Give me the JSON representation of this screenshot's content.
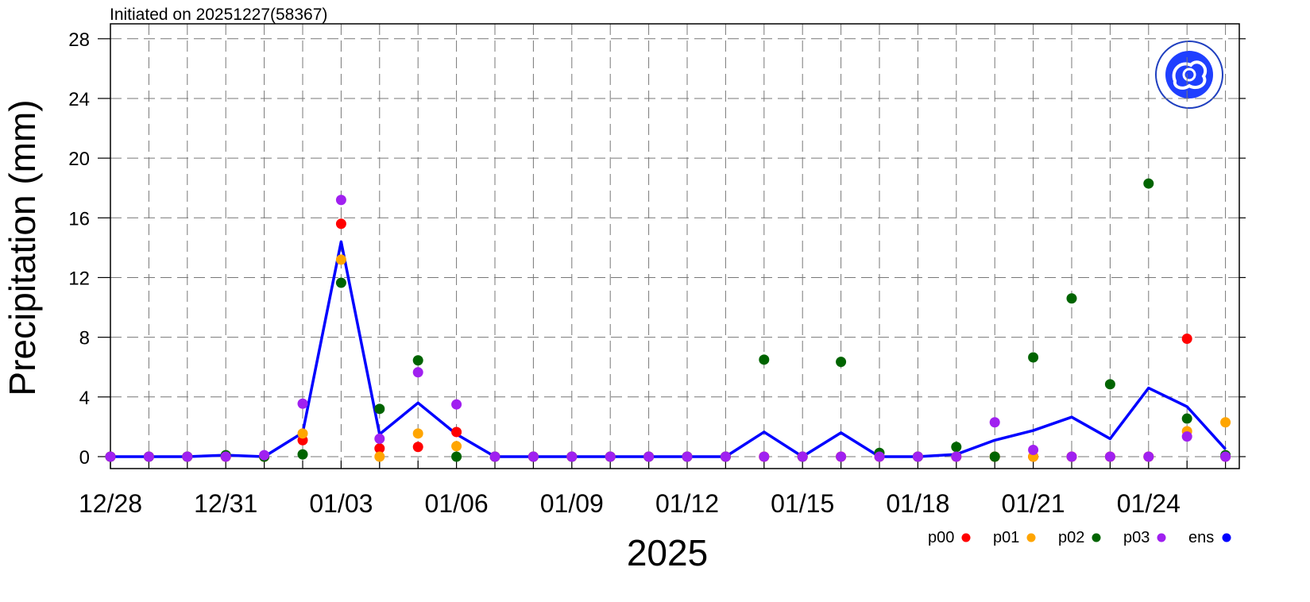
{
  "chart_data": {
    "type": "line",
    "title": "Initiated on 20251227(58367)",
    "xlabel": "2025",
    "ylabel": "Precipitation (mm)",
    "categories": [
      "12/28",
      null,
      null,
      "12/31",
      null,
      null,
      "01/03",
      null,
      null,
      "01/06",
      null,
      null,
      "01/09",
      null,
      null,
      "01/12",
      null,
      null,
      "01/15",
      null,
      null,
      "01/18",
      null,
      null,
      "01/21",
      null,
      null,
      "01/24",
      null,
      null
    ],
    "ylim": [
      -0.8,
      29
    ],
    "yticks": [
      0,
      4,
      8,
      12,
      16,
      20,
      24,
      28
    ],
    "grid": true,
    "legend": "bottom-right",
    "series": [
      {
        "name": "p00",
        "color": "#ff0000",
        "marker": "dot",
        "values": [
          0,
          0,
          0,
          0,
          0,
          1.1,
          15.6,
          0.55,
          0.65,
          1.65,
          0,
          0,
          0,
          0,
          0,
          0,
          0,
          0,
          0,
          0,
          0,
          0,
          0,
          0,
          0,
          0,
          0,
          0,
          7.9,
          0
        ]
      },
      {
        "name": "p01",
        "color": "#ffa500",
        "marker": "dot",
        "values": [
          0,
          0,
          0,
          0,
          0,
          1.55,
          13.2,
          0,
          1.55,
          0.7,
          0,
          0,
          0,
          0,
          0,
          0,
          0,
          0,
          0,
          0,
          0,
          0,
          0,
          0,
          0,
          0,
          0,
          0,
          1.7,
          2.3
        ]
      },
      {
        "name": "p02",
        "color": "#006400",
        "marker": "dot",
        "values": [
          0,
          0,
          0,
          0.1,
          0,
          0.15,
          11.65,
          3.2,
          6.45,
          0,
          0,
          0,
          0,
          0,
          0,
          0,
          0,
          6.5,
          0,
          6.35,
          0.25,
          0,
          0.65,
          0,
          6.65,
          10.6,
          4.85,
          18.3,
          2.55,
          0.1
        ]
      },
      {
        "name": "p03",
        "color": "#a020f0",
        "marker": "dot",
        "values": [
          0,
          0,
          0,
          0,
          0.1,
          3.55,
          17.2,
          1.2,
          5.65,
          3.5,
          0,
          0,
          0,
          0,
          0,
          0,
          0,
          0,
          0,
          0,
          0,
          0,
          0,
          2.3,
          0.45,
          0,
          0,
          0,
          1.35,
          0
        ]
      },
      {
        "name": "ens",
        "color": "#0000ff",
        "marker": "line",
        "values": [
          0,
          0,
          0,
          0.1,
          0,
          1.6,
          14.4,
          1.5,
          3.6,
          1.5,
          0,
          0,
          0,
          0,
          0,
          0,
          0,
          1.65,
          0,
          1.6,
          0,
          0,
          0.15,
          1.1,
          1.75,
          2.65,
          1.2,
          4.6,
          3.35,
          0.5
        ]
      }
    ]
  }
}
